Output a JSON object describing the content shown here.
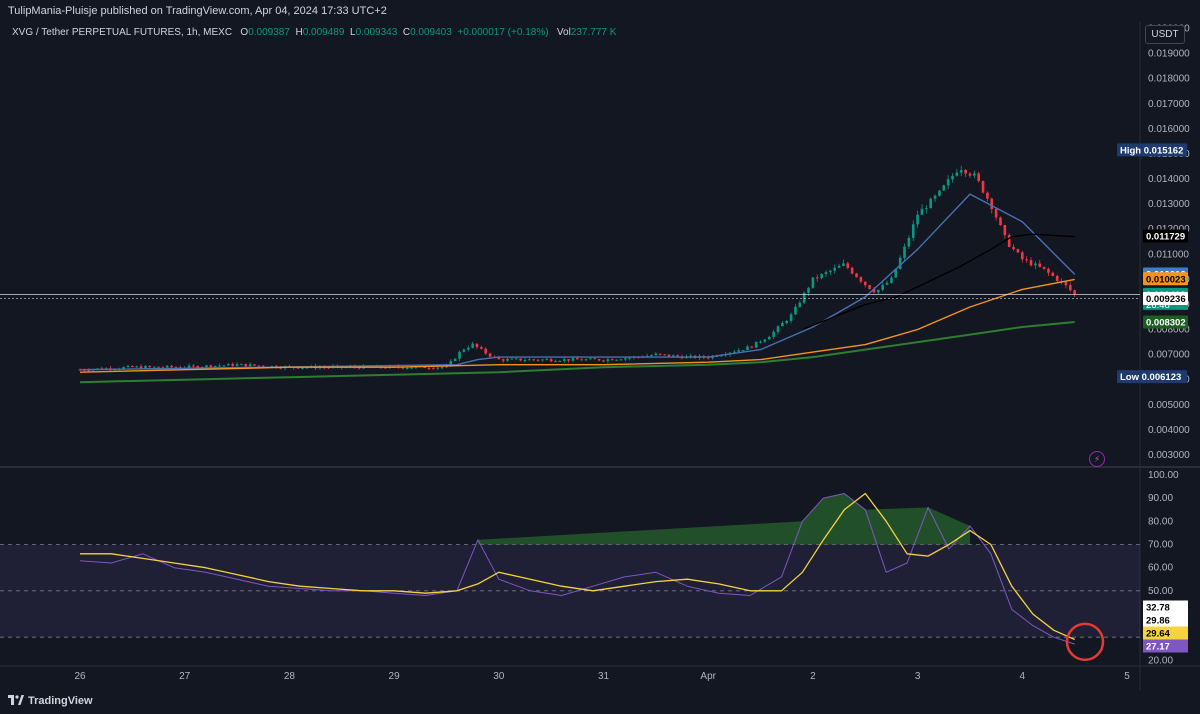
{
  "header": {
    "published": "TulipMania-Pluisje published on TradingView.com, Apr 04, 2024 17:33 UTC+2",
    "symbol": "XVG / Tether PERPETUAL FUTURES, 1h, MEXC",
    "open_label": "O",
    "open": "0.009387",
    "high_label": "H",
    "high": "0.009489",
    "low_label": "L",
    "low": "0.009343",
    "close_label": "C",
    "close": "0.009403",
    "change": "+0.000017 (+0.18%)",
    "vol_label": "Vol",
    "vol": "237.777 K",
    "currency": "USDT"
  },
  "footer": {
    "brand": "TradingView"
  },
  "icons": {
    "alert": "lightning-icon",
    "logo": "tradingview-logo-icon"
  },
  "colors": {
    "background": "#131722",
    "up": "#089981",
    "down": "#f23645",
    "ma_blue": "#4a6fb0",
    "ma_black": "#000000",
    "ma_orange": "#f7931a",
    "ma_green": "#2e7d32",
    "rsi": "#7e57c2",
    "rsi_ma": "#f5d33f"
  },
  "chart_data": [
    {
      "type": "candlestick",
      "title": "XVG / Tether PERPETUAL FUTURES, 1h, MEXC",
      "y_scale": "linear",
      "ylim": [
        0.0026,
        0.0205
      ],
      "y_ticks": [
        "0.020000",
        "0.019000",
        "0.018000",
        "0.017000",
        "0.016000",
        "0.015000",
        "0.014000",
        "0.013000",
        "0.012000",
        "0.011000",
        "0.010000",
        "0.009000",
        "0.008000",
        "0.007000",
        "0.006000",
        "0.005000",
        "0.004000",
        "0.003000"
      ],
      "x_ticks": [
        "26",
        "27",
        "28",
        "29",
        "30",
        "31",
        "Apr",
        "2",
        "3",
        "4",
        "5"
      ],
      "price_path": [
        [
          0.0,
          0.0064
        ],
        [
          0.5,
          0.0065
        ],
        [
          1.0,
          0.0065
        ],
        [
          1.5,
          0.0066
        ],
        [
          2.0,
          0.0065
        ],
        [
          2.5,
          0.0065
        ],
        [
          3.0,
          0.0065
        ],
        [
          3.5,
          0.0065
        ],
        [
          3.65,
          0.0072
        ],
        [
          3.75,
          0.0074
        ],
        [
          3.9,
          0.007
        ],
        [
          4.0,
          0.0068
        ],
        [
          4.5,
          0.0068
        ],
        [
          5.0,
          0.0068
        ],
        [
          5.3,
          0.0069
        ],
        [
          5.5,
          0.007
        ],
        [
          5.8,
          0.0069
        ],
        [
          6.0,
          0.0069
        ],
        [
          6.2,
          0.0071
        ],
        [
          6.4,
          0.0073
        ],
        [
          6.6,
          0.0078
        ],
        [
          6.8,
          0.0086
        ],
        [
          7.0,
          0.01
        ],
        [
          7.3,
          0.0106
        ],
        [
          7.5,
          0.0098
        ],
        [
          7.6,
          0.0095
        ],
        [
          7.75,
          0.01
        ],
        [
          7.9,
          0.0115
        ],
        [
          8.0,
          0.0126
        ],
        [
          8.2,
          0.0134
        ],
        [
          8.4,
          0.0145
        ],
        [
          8.55,
          0.0141
        ],
        [
          8.7,
          0.013
        ],
        [
          8.85,
          0.0115
        ],
        [
          9.0,
          0.0108
        ],
        [
          9.2,
          0.0104
        ],
        [
          9.4,
          0.0098
        ],
        [
          9.5,
          0.0094
        ]
      ],
      "high": "0.015162",
      "low": "0.006123",
      "series": [
        {
          "name": "",
          "color": "#4a6fb0",
          "x": [
            0,
            3.6,
            3.8,
            4,
            5,
            6,
            6.5,
            7,
            7.5,
            8,
            8.5,
            9,
            9.5
          ],
          "values": [
            0.0064,
            0.0066,
            0.0068,
            0.0069,
            0.0069,
            0.0069,
            0.0072,
            0.0081,
            0.0093,
            0.0112,
            0.0134,
            0.0123,
            0.0102
          ]
        },
        {
          "name": "",
          "color": "#000000",
          "x": [
            6.9,
            7.2,
            7.5,
            7.8,
            8.1,
            8.4,
            8.7,
            8.9,
            9.1,
            9.5
          ],
          "values": [
            0.008,
            0.0085,
            0.009,
            0.0093,
            0.0099,
            0.0105,
            0.0112,
            0.0117,
            0.0118,
            0.0117
          ]
        },
        {
          "name": "",
          "color": "#f7931a",
          "x": [
            0,
            1,
            2,
            3,
            4,
            5,
            6,
            6.5,
            7,
            7.5,
            8,
            8.5,
            9,
            9.5
          ],
          "values": [
            0.0063,
            0.0064,
            0.0065,
            0.0065,
            0.0066,
            0.0066,
            0.0067,
            0.0068,
            0.0071,
            0.0074,
            0.008,
            0.0089,
            0.0096,
            0.01
          ]
        },
        {
          "name": "",
          "color": "#2e7d32",
          "x": [
            0,
            1,
            2,
            3,
            4,
            5,
            6,
            6.5,
            7,
            7.5,
            8,
            8.5,
            9,
            9.5
          ],
          "values": [
            0.0059,
            0.006,
            0.0061,
            0.0062,
            0.0063,
            0.0065,
            0.0066,
            0.0067,
            0.0069,
            0.0072,
            0.0075,
            0.0078,
            0.0081,
            0.0083
          ]
        }
      ],
      "price_labels": [
        {
          "text": "High",
          "value": "0.015162",
          "style": "navy",
          "y": 0.015162
        },
        {
          "text": "",
          "value": "0.011729",
          "style": "black",
          "y": 0.011729
        },
        {
          "text": "",
          "value": "0.010216",
          "style": "blue",
          "y": 0.010216
        },
        {
          "text": "",
          "value": "0.010023",
          "style": "orange",
          "y": 0.010023
        },
        {
          "text": "",
          "value": "0.009403",
          "style": "green",
          "y": 0.009403,
          "sub": "26:48"
        },
        {
          "text": "",
          "value": "0.009236",
          "style": "white",
          "y": 0.009236
        },
        {
          "text": "",
          "value": "0.008302",
          "style": "darkgreen",
          "y": 0.008302
        },
        {
          "text": "Low",
          "value": "0.006123",
          "style": "navy",
          "y": 0.006123
        }
      ]
    },
    {
      "type": "line",
      "title": "",
      "ylim": [
        18,
        103
      ],
      "y_ticks": [
        "100.00",
        "90.00",
        "80.00",
        "70.00",
        "60.00",
        "50.00",
        "40.00",
        "30.00",
        "20.00"
      ],
      "bands": [
        70,
        50,
        30
      ],
      "x": [
        0,
        0.3,
        0.6,
        0.9,
        1.2,
        1.5,
        1.8,
        2.1,
        2.4,
        2.7,
        3.0,
        3.3,
        3.6,
        3.8,
        4.0,
        4.3,
        4.6,
        4.9,
        5.2,
        5.5,
        5.8,
        6.1,
        6.4,
        6.7,
        6.9,
        7.1,
        7.3,
        7.5,
        7.7,
        7.9,
        8.1,
        8.3,
        8.5,
        8.7,
        8.9,
        9.1,
        9.3,
        9.5
      ],
      "series": [
        {
          "name": "",
          "color": "#7e57c2",
          "values": [
            63,
            62,
            66,
            60,
            58,
            55,
            52,
            51,
            50,
            50,
            49,
            48,
            50,
            72,
            55,
            50,
            48,
            52,
            56,
            58,
            52,
            49,
            48,
            56,
            80,
            90,
            92,
            85,
            58,
            62,
            86,
            68,
            78,
            66,
            42,
            35,
            30,
            27
          ]
        },
        {
          "name": "",
          "color": "#f5d33f",
          "values": [
            66,
            66,
            64,
            62,
            60,
            57,
            54,
            52,
            51,
            50,
            50,
            49,
            50,
            53,
            58,
            55,
            52,
            50,
            52,
            54,
            55,
            53,
            50,
            50,
            58,
            72,
            85,
            92,
            80,
            66,
            65,
            70,
            76,
            70,
            52,
            40,
            33,
            29
          ]
        }
      ],
      "value_labels": [
        "32.78",
        "29.86",
        "29.64",
        "27.17"
      ]
    }
  ]
}
